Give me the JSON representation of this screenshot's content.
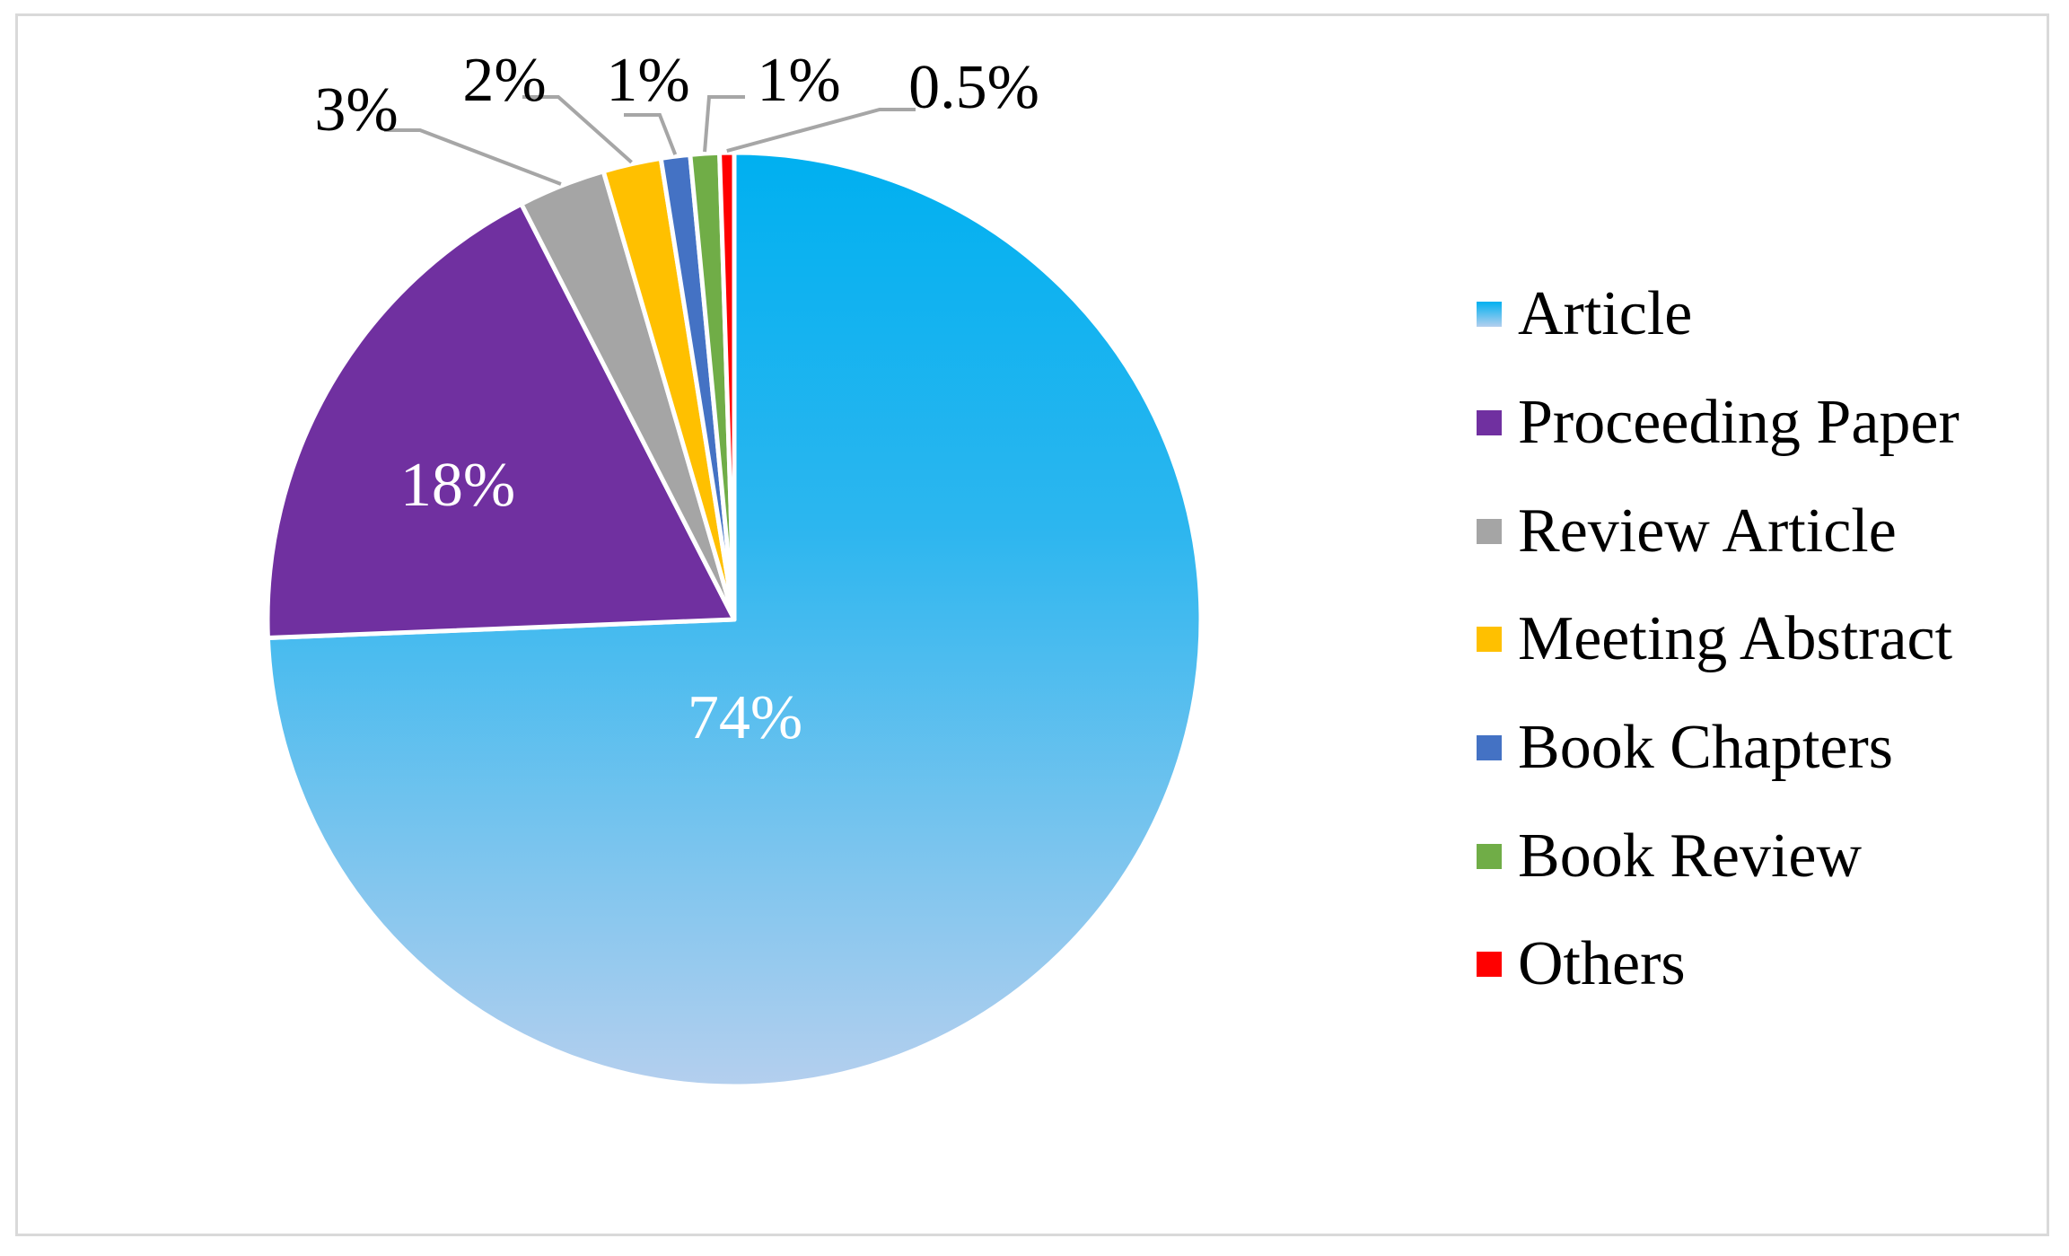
{
  "chart_data": {
    "type": "pie",
    "title": "",
    "slices": [
      {
        "label": "Article",
        "value": 74,
        "label_text": "74%",
        "color": "#00b0f0",
        "color_light": "#b4cfee"
      },
      {
        "label": "Proceeding Paper",
        "value": 18,
        "label_text": "18%",
        "color": "#7030a0"
      },
      {
        "label": "Review Article",
        "value": 3,
        "label_text": "3%",
        "color": "#a5a5a5"
      },
      {
        "label": "Meeting Abstract",
        "value": 2,
        "label_text": "2%",
        "color": "#ffc000"
      },
      {
        "label": "Book Chapters",
        "value": 1,
        "label_text": "1%",
        "color": "#4472c4"
      },
      {
        "label": "Book Review",
        "value": 1,
        "label_text": "1%",
        "color": "#70ad47"
      },
      {
        "label": "Others",
        "value": 0.5,
        "label_text": "0.5%",
        "color": "#ff0000"
      }
    ],
    "start_angle": "12 o'clock",
    "direction": "clockwise",
    "legend_position": "right"
  }
}
